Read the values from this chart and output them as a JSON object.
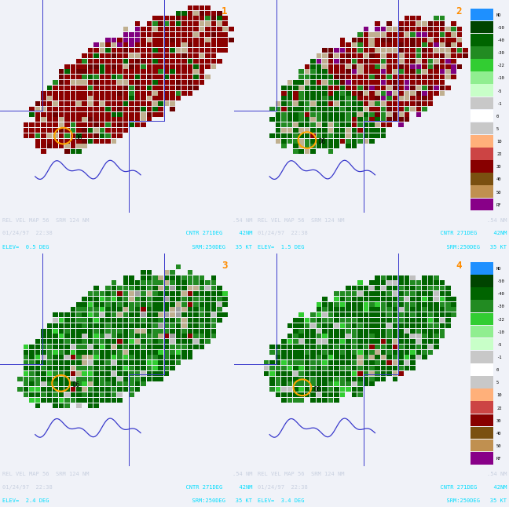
{
  "bg_color": "#f0f2f8",
  "panel_bg": "#f0f2f8",
  "panel_number_color": "#ff8c00",
  "border_color": "#3a3acc",
  "d6_circle_color": "#ffa500",
  "colorbar_values": [
    "ND",
    "-50",
    "-40",
    "-30",
    "-22",
    "-10",
    "-5",
    "-1",
    "0",
    "5",
    "10",
    "22",
    "30",
    "40",
    "50",
    "RF"
  ],
  "colorbar_colors": [
    "#1e90ff",
    "#004400",
    "#006400",
    "#228b22",
    "#32cd32",
    "#90ee90",
    "#c8ffc8",
    "#c8c8c8",
    "#ffffff",
    "#c8c8c8",
    "#ffb07a",
    "#cc4444",
    "#880000",
    "#7a5010",
    "#c09050",
    "#880088"
  ],
  "elevations": [
    "0.5",
    "1.5",
    "2.4",
    "3.4"
  ],
  "date_time": "01/24/97  22:38",
  "header": "REL VEL MAP 56  SRM 124 NM",
  "header_right": ".54 NM",
  "cntr": "CNTR 271DEG",
  "cntr_nm": "42NM",
  "srm": "SRM:250DEG   35 KT",
  "status_text_color": "#c8d0e0",
  "status_cyan_color": "#00ddff"
}
